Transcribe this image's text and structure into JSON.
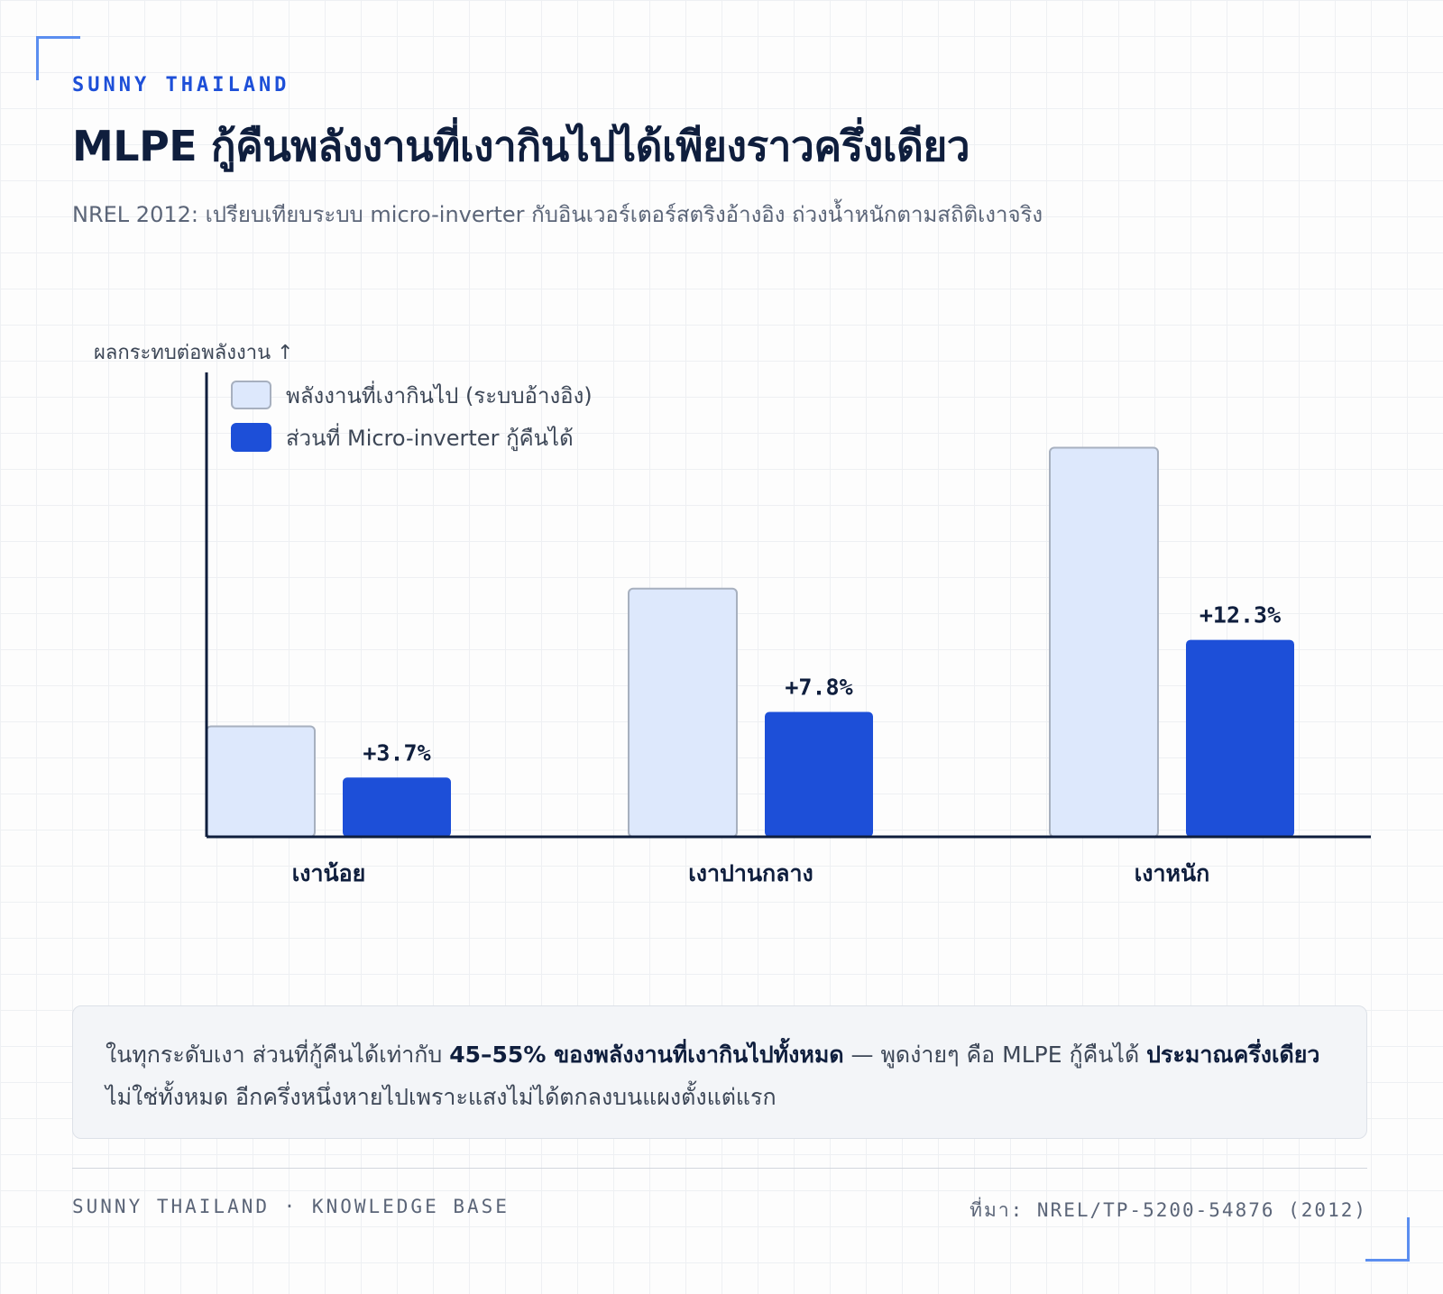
{
  "brand": "SUNNY THAILAND",
  "title": "MLPE กู้คืนพลังงานที่เงากินไปได้เพียงราวครึ่งเดียว",
  "subtitle": "NREL 2012: เปรียบเทียบระบบ micro-inverter กับอินเวอร์เตอร์สตริงอ้างอิง ถ่วงน้ำหนักตามสถิติเงาจริง",
  "colors": {
    "accent": "#1d4fd8",
    "lost_fill": "#dde8fc",
    "lost_stroke": "#a7b0bf",
    "axis": "#0f1e3d"
  },
  "chart_data": {
    "type": "bar",
    "ylabel": "ผลกระทบต่อพลังงาน ↑",
    "categories": [
      "เงาน้อย",
      "เงาปานกลาง",
      "เงาหนัก"
    ],
    "series": [
      {
        "name": "พลังงานที่เงากินไป (ระบบอ้างอิง)",
        "values": [
          6.9,
          15.5,
          24.3
        ],
        "color": "#dde8fc"
      },
      {
        "name": "ส่วนที่ Micro-inverter กู้คืนได้",
        "values": [
          3.7,
          7.8,
          12.3
        ],
        "color": "#1d4fd8"
      }
    ],
    "data_labels": [
      "+3.7%",
      "+7.8%",
      "+12.3%"
    ],
    "ylim": [
      0,
      29
    ],
    "legend": "top-left",
    "grid": false
  },
  "callout": {
    "t1": "ในทุกระดับเงา ส่วนที่กู้คืนได้เท่ากับ ",
    "b1": "45–55% ของพลังงานที่เงากินไปทั้งหมด",
    "t2": " — พูดง่ายๆ คือ MLPE กู้คืนได้ ",
    "b2": "ประมาณครึ่งเดียว",
    "t3": " ไม่ใช่ทั้งหมด อีกครึ่งหนึ่งหายไปเพราะแสงไม่ได้ตกลงบนแผงตั้งแต่แรก"
  },
  "footer": {
    "left": "SUNNY THAILAND · KNOWLEDGE BASE",
    "right": "ที่มา: NREL/TP-5200-54876 (2012)"
  }
}
